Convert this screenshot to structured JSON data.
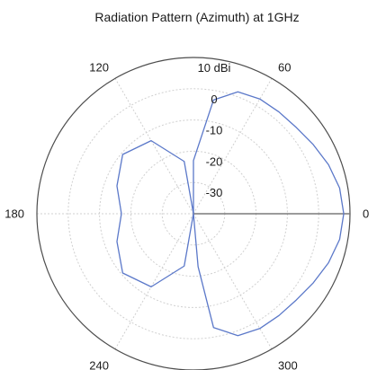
{
  "chart_data": {
    "type": "polar-line",
    "title": "Radiation Pattern (Azimuth) at 1GHz",
    "angular_unit": "degrees",
    "angular_ticks": [
      0,
      60,
      120,
      180,
      240,
      300
    ],
    "angular_tick_labels": [
      "0",
      "60",
      "120",
      "180",
      "240",
      "300"
    ],
    "radial_range": [
      -40,
      10
    ],
    "radial_ticks": [
      10,
      0,
      -10,
      -20,
      -30
    ],
    "radial_tick_labels": [
      "10 dBi",
      "0",
      "-10",
      "-20",
      "-30"
    ],
    "grid": true,
    "colors": {
      "series": "#5b78c9",
      "grid": "#d0d0d0",
      "outer_ring": "#4d4d4d"
    },
    "series": [
      {
        "theta": [
          0,
          10,
          20,
          30,
          40,
          50,
          60,
          70,
          80,
          90,
          95,
          100,
          120,
          140,
          160,
          180,
          200,
          220,
          240,
          260,
          265,
          270,
          275,
          280,
          290,
          300,
          310,
          320,
          330,
          340,
          350,
          360
        ],
        "r": [
          8.0,
          7.4,
          5.9,
          4.2,
          2.9,
          2.5,
          2.4,
          1.5,
          -3.0,
          -23.0,
          -40.0,
          -23.0,
          -13.0,
          -10.5,
          -14.0,
          -17.0,
          -14.0,
          -10.5,
          -13.0,
          -23.0,
          -40.0,
          -40.0,
          -23.0,
          -3.0,
          1.5,
          2.4,
          2.5,
          2.9,
          4.2,
          5.9,
          7.4,
          8.0
        ]
      }
    ]
  }
}
